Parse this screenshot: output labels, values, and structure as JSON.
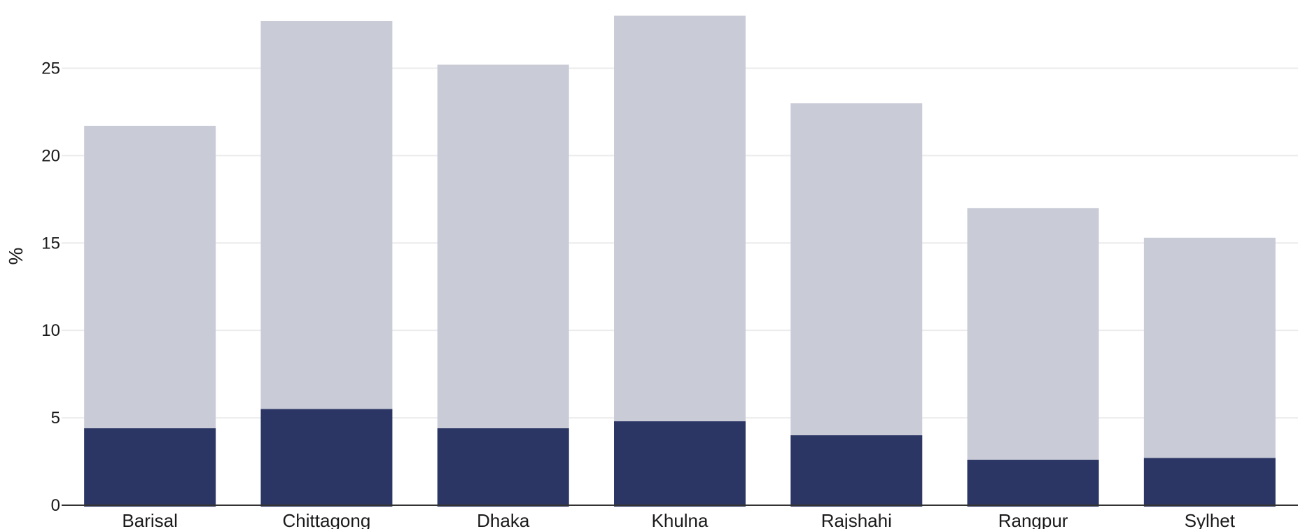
{
  "chart_data": {
    "type": "bar",
    "stacked": false,
    "overlay": true,
    "categories": [
      "Barisal",
      "Chittagong",
      "Dhaka",
      "Khulna",
      "Rajshahi",
      "Rangpur",
      "Sylhet"
    ],
    "series": [
      {
        "values": [
          21.7,
          27.7,
          25.2,
          28.0,
          23.0,
          17.0,
          15.3
        ],
        "color": "#c9cbd7"
      },
      {
        "values": [
          4.4,
          5.5,
          4.4,
          4.8,
          4.0,
          2.6,
          2.7
        ],
        "color": "#2b3664"
      }
    ],
    "ylabel": "%",
    "xlabel": "",
    "ylim": [
      0,
      28.5
    ],
    "yticks": [
      0,
      5,
      10,
      15,
      20,
      25
    ],
    "grid": true,
    "grid_color": "#ebebeb",
    "axis_color": "#333333"
  }
}
